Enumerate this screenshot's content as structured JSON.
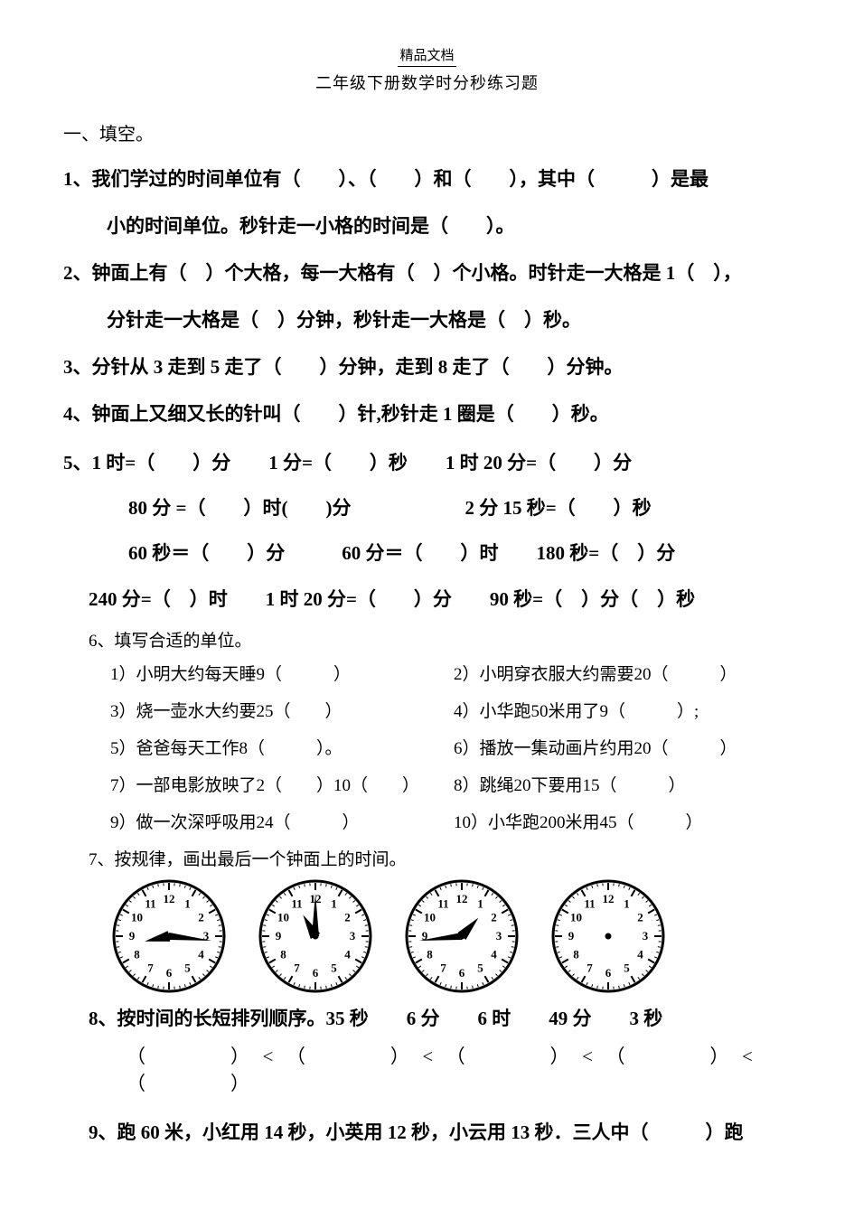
{
  "header_small": "精品文档",
  "subtitle": "二年级下册数学时分秒练习题",
  "section1": "一、填空。",
  "q1_num": "1",
  "q1_a": "、我们学过的时间单位有（　　）、（　　）和（　　），其中（　　　）是最",
  "q1_b": "小的时间单位。秒针走一小格的时间是（　　）。",
  "q2_num": "2",
  "q2_a": "、钟面上有（　）个大格，每一大格有（　）个小格。时针走一大格是 1（　），",
  "q2_b": "分针走一大格是（　）分钟，秒针走一大格是（　）秒。",
  "q3_num": "3",
  "q3": "、分针从 3 走到 5 走了（　　）分钟，走到 8 走了（　　）分钟。",
  "q4_num": "4",
  "q4": "、钟面上又细又长的针叫（　　）针,秒针走 1 圈是（　　）秒。",
  "q5_num": "5",
  "q5_l1": "、1 时=（　　）分　　1 分=（　　）秒　　1 时 20 分=（　　）分",
  "q5_l2": "80 分 =（　　）时(　　)分　　　　　　2 分 15 秒=（　　）秒",
  "q5_l3": "60 秒＝（　　）分　　　60 分＝（　　）时　　180 秒=（　）分",
  "q5_l4": "240 分=（　）时　　1 时 20 分=（　　）分　　90 秒=（　）分（　）秒",
  "q6_head": "6、填写合适的单位。",
  "q6_1": "1）小明大约每天睡9（　　　）",
  "q6_2": "2）小明穿衣服大约需要20（　　　）",
  "q6_3": "3）烧一壶水大约要25（　　）",
  "q6_4": "4）小华跑50米用了9（　　　）;",
  "q6_5": "5）爸爸每天工作8（　　　）。",
  "q6_6": "6）播放一集动画片约用20（　　　）",
  "q6_7": "7）一部电影放映了2（　　）10（　　）",
  "q6_8": "8）跳绳20下要用15（　　　）",
  "q6_9": "9）做一次深呼吸用24（　　　）",
  "q6_10": "10）小华跑200米用45（　　　）",
  "q7_head": "7、按规律，画出最后一个钟面上的时间。",
  "clocks": [
    {
      "hour_angle": 258,
      "minute_angle": 96,
      "has_hands": true
    },
    {
      "hour_angle": 330,
      "minute_angle": 0,
      "has_hands": true
    },
    {
      "hour_angle": 42,
      "minute_angle": 264,
      "has_hands": true
    },
    {
      "hour_angle": null,
      "minute_angle": null,
      "has_hands": false
    }
  ],
  "q8_num": "8",
  "q8_a": "、按时间的长短排列顺序。35 秒　　6 分　　6 时　　49 分　　3 秒",
  "q8_order": "（　　　　）　<　（　　　　）　<　（　　　　）　<　（　　　　）　<　（　　　　）",
  "q9_num": "9",
  "q9": "、跑 60 米，小红用 14 秒，小英用 12 秒，小云用 13 秒．三人中（　　　）跑",
  "clock_style": {
    "size": 130,
    "face_fill": "#ffffff",
    "stroke": "#000000",
    "number_font": 13
  }
}
